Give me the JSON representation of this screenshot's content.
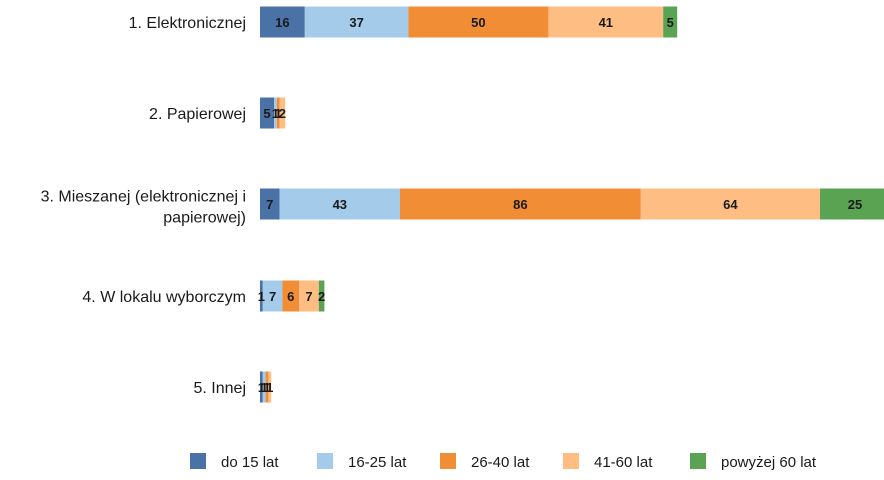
{
  "chart_data": {
    "type": "bar",
    "orientation": "horizontal",
    "stacked": true,
    "categories": [
      "1. Elektronicznej",
      "2. Papierowej",
      "3. Mieszanej (elektronicznej i papierowej)",
      "4. W lokalu wyborczym",
      "5. Innej"
    ],
    "category_lines": [
      [
        "1. Elektronicznej"
      ],
      [
        "2. Papierowej"
      ],
      [
        "3. Mieszanej (elektronicznej i",
        "papierowej)"
      ],
      [
        "4. W lokalu wyborczym"
      ],
      [
        "5. Innej"
      ]
    ],
    "series": [
      {
        "name": "do 15 lat",
        "color": "#4a72a7",
        "values": [
          16,
          5,
          7,
          1,
          1
        ]
      },
      {
        "name": "16-25 lat",
        "color": "#a5cbea",
        "values": [
          37,
          1,
          43,
          7,
          1
        ]
      },
      {
        "name": "26-40 lat",
        "color": "#f08d35",
        "values": [
          50,
          1,
          86,
          6,
          1
        ]
      },
      {
        "name": "41-60 lat",
        "color": "#fdbd83",
        "values": [
          41,
          2,
          64,
          7,
          1
        ]
      },
      {
        "name": "powyżej 60 lat",
        "color": "#5aa352",
        "values": [
          5,
          0,
          25,
          2,
          0
        ]
      }
    ],
    "data_labels": true,
    "grid": false,
    "axes_visible": false,
    "legend_position": "bottom",
    "title": "",
    "xlabel": "",
    "ylabel": ""
  }
}
